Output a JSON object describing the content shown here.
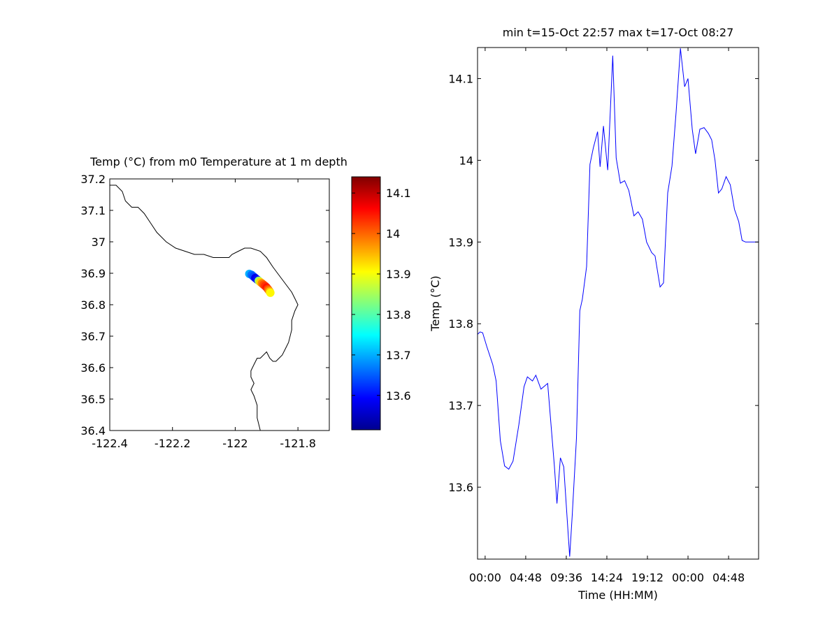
{
  "chart_data": [
    {
      "type": "scatter",
      "title": "Temp (°C) from m0 Temperature at 1 m depth",
      "xlabel": "",
      "ylabel": "",
      "xlim": [
        -122.4,
        -121.7
      ],
      "ylim": [
        36.4,
        37.2
      ],
      "xticks": [
        -122.4,
        -122.2,
        -122,
        -121.8
      ],
      "xtick_labels": [
        "-122.4",
        "-122.2",
        "-122",
        "-121.8"
      ],
      "yticks": [
        36.4,
        36.5,
        36.6,
        36.7,
        36.8,
        36.9,
        37,
        37.1,
        37.2
      ],
      "ytick_labels": [
        "36.4",
        "36.5",
        "36.6",
        "36.7",
        "36.8",
        "36.9",
        "37",
        "37.1",
        "37.2"
      ],
      "grid": false,
      "coastline": {
        "lon": [
          -122.4,
          -122.38,
          -122.36,
          -122.35,
          -122.34,
          -122.33,
          -122.31,
          -122.29,
          -122.27,
          -122.25,
          -122.22,
          -122.19,
          -122.16,
          -122.13,
          -122.1,
          -122.07,
          -122.04,
          -122.02,
          -122.01,
          -121.99,
          -121.97,
          -121.95,
          -121.92,
          -121.9,
          -121.88,
          -121.85,
          -121.82,
          -121.81,
          -121.8,
          -121.81,
          -121.82,
          -121.82,
          -121.83,
          -121.84,
          -121.85,
          -121.87,
          -121.88,
          -121.89,
          -121.9,
          -121.92,
          -121.93,
          -121.94,
          -121.95,
          -121.95,
          -121.94,
          -121.95,
          -121.94,
          -121.93,
          -121.93,
          -121.92
        ],
        "lat": [
          37.18,
          37.18,
          37.16,
          37.13,
          37.12,
          37.11,
          37.11,
          37.09,
          37.06,
          37.03,
          37.0,
          36.98,
          36.97,
          36.96,
          36.96,
          36.95,
          36.95,
          36.95,
          36.96,
          36.97,
          36.98,
          36.98,
          36.97,
          36.95,
          36.92,
          36.88,
          36.84,
          36.82,
          36.8,
          36.78,
          36.75,
          36.72,
          36.68,
          36.66,
          36.64,
          36.62,
          36.62,
          36.63,
          36.65,
          36.63,
          36.63,
          36.61,
          36.59,
          36.57,
          36.55,
          36.53,
          36.51,
          36.48,
          36.44,
          36.4
        ]
      },
      "points": {
        "lon": [
          -121.955,
          -121.948,
          -121.942,
          -121.936,
          -121.93,
          -121.925,
          -121.92,
          -121.915,
          -121.91,
          -121.905,
          -121.9,
          -121.896,
          -121.893,
          -121.89,
          -121.888
        ],
        "lat": [
          36.898,
          36.895,
          36.89,
          36.885,
          36.88,
          36.876,
          36.872,
          36.868,
          36.864,
          36.86,
          36.855,
          36.85,
          36.846,
          36.842,
          36.838
        ],
        "temp": [
          13.7,
          13.66,
          13.64,
          13.58,
          13.6,
          13.85,
          13.93,
          13.98,
          14.01,
          14.03,
          14.05,
          14.02,
          13.99,
          13.95,
          13.91
        ]
      },
      "colorbar": {
        "colormap": "jet",
        "clim": [
          13.515,
          14.14
        ],
        "ticks": [
          13.6,
          13.7,
          13.8,
          13.9,
          14,
          14.1
        ],
        "tick_labels": [
          "13.6",
          "13.7",
          "13.8",
          "13.9",
          "14",
          "14.1"
        ]
      },
      "colors": {
        "coastline": "#000000",
        "axes": "#000000"
      }
    },
    {
      "type": "line",
      "title": "min t=15-Oct 22:57 max t=17-Oct 08:27",
      "xlabel": "Time (HH:MM)",
      "ylabel": "Temp (°C)",
      "xlim": [
        -0.9,
        32.35
      ],
      "ylim": [
        13.512,
        14.138
      ],
      "xticks": [
        0,
        4.8,
        9.6,
        14.4,
        19.2,
        24,
        28.8
      ],
      "xtick_labels": [
        "00:00",
        "04:48",
        "09:36",
        "14:24",
        "19:12",
        "00:00",
        "04:48"
      ],
      "yticks": [
        13.6,
        13.7,
        13.8,
        13.9,
        14,
        14.1
      ],
      "ytick_labels": [
        "13.6",
        "13.7",
        "13.8",
        "13.9",
        "14",
        "14.1"
      ],
      "grid": false,
      "series": [
        {
          "color": "#0000ff",
          "x": [
            -0.9,
            -0.6,
            -0.3,
            0.2,
            0.9,
            1.3,
            1.8,
            2.3,
            2.8,
            3.3,
            4.0,
            4.6,
            5.0,
            5.6,
            6.0,
            6.6,
            7.4,
            8.2,
            8.5,
            8.9,
            9.3,
            10.0,
            10.3,
            10.8,
            11.2,
            11.5,
            12.0,
            12.4,
            12.8,
            13.3,
            13.6,
            14.0,
            14.5,
            15.1,
            15.5,
            16.0,
            16.5,
            17.0,
            17.6,
            18.1,
            18.6,
            19.1,
            19.7,
            20.1,
            20.7,
            21.1,
            21.6,
            22.1,
            22.6,
            23.1,
            23.6,
            24.0,
            24.5,
            24.9,
            25.4,
            25.9,
            26.4,
            26.8,
            27.2,
            27.6,
            28.0,
            28.5,
            29.0,
            29.5,
            30.0,
            30.4,
            30.8,
            31.2,
            31.6,
            32.0,
            32.35
          ],
          "y": [
            13.787,
            13.79,
            13.789,
            13.772,
            13.75,
            13.73,
            13.657,
            13.626,
            13.622,
            13.632,
            13.677,
            13.723,
            13.735,
            13.73,
            13.737,
            13.72,
            13.727,
            13.625,
            13.58,
            13.636,
            13.625,
            13.515,
            13.565,
            13.66,
            13.816,
            13.83,
            13.87,
            13.995,
            14.015,
            14.035,
            13.992,
            14.042,
            13.988,
            14.128,
            14.003,
            13.972,
            13.975,
            13.963,
            13.932,
            13.937,
            13.928,
            13.9,
            13.887,
            13.883,
            13.845,
            13.85,
            13.96,
            13.993,
            14.06,
            14.137,
            14.09,
            14.1,
            14.038,
            14.008,
            14.038,
            14.04,
            14.033,
            14.025,
            14.0,
            13.96,
            13.965,
            13.98,
            13.97,
            13.94,
            13.925,
            13.902,
            13.9,
            13.9,
            13.9,
            13.9,
            13.9
          ]
        }
      ],
      "colors": {
        "line": "#0000ff",
        "axes": "#000000"
      }
    }
  ]
}
